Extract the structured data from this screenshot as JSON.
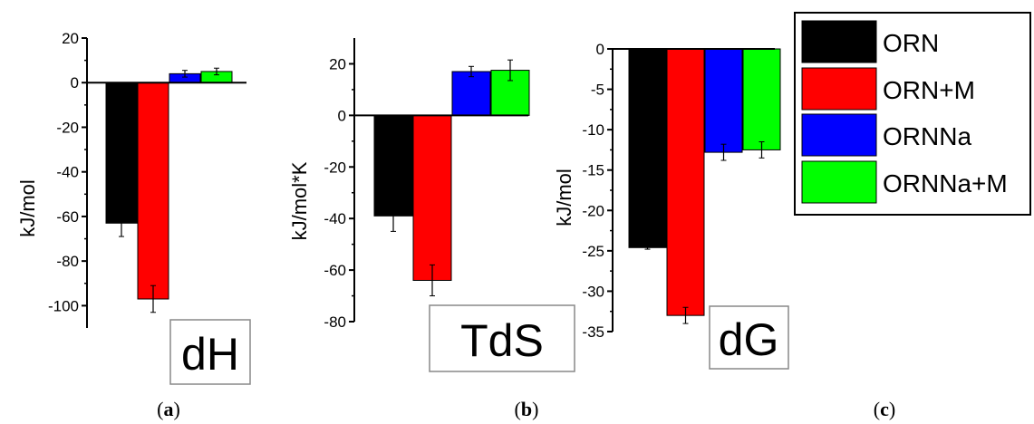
{
  "legend": {
    "entries": [
      {
        "label": "ORN",
        "color": "#000000"
      },
      {
        "label": "ORN+M",
        "color": "#ff0000"
      },
      {
        "label": "ORNNa",
        "color": "#0000ff"
      },
      {
        "label": "ORNNa+M",
        "color": "#00ff00"
      }
    ]
  },
  "chart_data": [
    {
      "type": "bar",
      "panel": "a",
      "box_label": "dH",
      "ylabel": "kJ/mol",
      "xlabel": "",
      "ylim": [
        -110,
        20
      ],
      "yticks": [
        20,
        0,
        -20,
        -40,
        -60,
        -80,
        -100
      ],
      "series": [
        {
          "name": "ORN",
          "value": -63,
          "error": 6,
          "color": "#000000"
        },
        {
          "name": "ORN+M",
          "value": -97,
          "error": 6,
          "color": "#ff0000"
        },
        {
          "name": "ORNNa",
          "value": 4,
          "error": 1.5,
          "color": "#0000ff"
        },
        {
          "name": "ORNNa+M",
          "value": 5,
          "error": 1.5,
          "color": "#00ff00"
        }
      ]
    },
    {
      "type": "bar",
      "panel": "b",
      "box_label": "TdS",
      "ylabel": "kJ/mol*K",
      "xlabel": "",
      "ylim": [
        -80,
        30
      ],
      "yticks": [
        20,
        0,
        -20,
        -40,
        -60,
        -80
      ],
      "series": [
        {
          "name": "ORN",
          "value": -39,
          "error": 6,
          "color": "#000000"
        },
        {
          "name": "ORN+M",
          "value": -64,
          "error": 6,
          "color": "#ff0000"
        },
        {
          "name": "ORNNa",
          "value": 17,
          "error": 2,
          "color": "#0000ff"
        },
        {
          "name": "ORNNa+M",
          "value": 17.5,
          "error": 4,
          "color": "#00ff00"
        }
      ]
    },
    {
      "type": "bar",
      "panel": "c",
      "box_label": "dG",
      "ylabel": "kJ/mol",
      "xlabel": "",
      "ylim": [
        -35,
        0
      ],
      "yticks": [
        0,
        -5,
        -10,
        -15,
        -20,
        -25,
        -30,
        -35
      ],
      "series": [
        {
          "name": "ORN",
          "value": -24.6,
          "error": 0.2,
          "color": "#000000"
        },
        {
          "name": "ORN+M",
          "value": -33,
          "error": 1,
          "color": "#ff0000"
        },
        {
          "name": "ORNNa",
          "value": -12.8,
          "error": 1,
          "color": "#0000ff"
        },
        {
          "name": "ORNNa+M",
          "value": -12.5,
          "error": 1,
          "color": "#00ff00"
        }
      ]
    }
  ],
  "panel_labels": [
    {
      "open": "(",
      "letter": "a",
      "close": ")"
    },
    {
      "open": "(",
      "letter": "b",
      "close": ")"
    },
    {
      "open": "(",
      "letter": "c",
      "close": ")"
    }
  ]
}
